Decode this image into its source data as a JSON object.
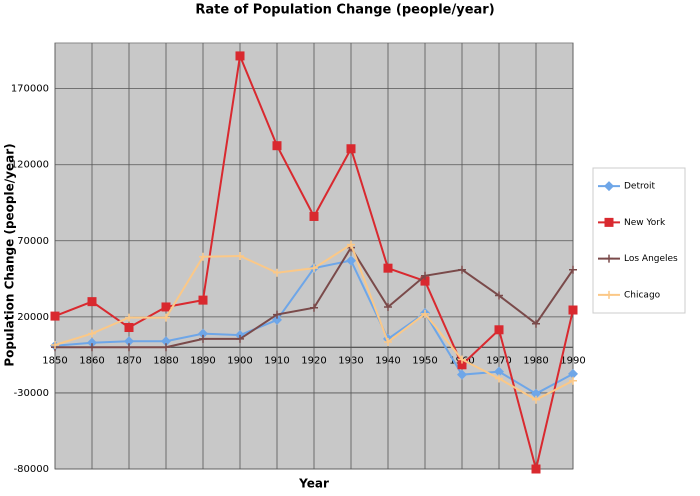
{
  "chart_data": {
    "type": "line",
    "title": "Rate of Population Change (people/year)",
    "x_label": "Year",
    "y_label": "Population Change (people/year)",
    "categories": [
      "1850",
      "1860",
      "1870",
      "1880",
      "1890",
      "1900",
      "1910",
      "1920",
      "1930",
      "1940",
      "1950",
      "1960",
      "1970",
      "1980",
      "1990"
    ],
    "ylim": [
      -80000,
      200000
    ],
    "yticks": [
      -80000,
      -30000,
      20000,
      70000,
      120000,
      170000
    ],
    "grid": true,
    "legend": "right",
    "series": [
      {
        "name": "Detroit",
        "color": "#6ea6e8",
        "marker": "diamond",
        "values": [
          1000,
          3000,
          4000,
          4000,
          9000,
          8000,
          18000,
          52000,
          57000,
          5500,
          22500,
          -18000,
          -16000,
          -30500,
          -17500
        ]
      },
      {
        "name": "New York",
        "color": "#d9292f",
        "marker": "square",
        "values": [
          20500,
          30000,
          13000,
          26500,
          31000,
          191500,
          132500,
          86000,
          130500,
          52000,
          43500,
          -11500,
          11500,
          -80000,
          24500
        ]
      },
      {
        "name": "Los Angeles",
        "color": "#7a4a4a",
        "marker": "plus",
        "values": [
          0,
          0,
          0,
          0,
          5500,
          5500,
          21500,
          26000,
          65500,
          26500,
          47000,
          51000,
          34000,
          15500,
          51000
        ]
      },
      {
        "name": "Chicago",
        "color": "#fbc887",
        "marker": "plus",
        "values": [
          1500,
          9000,
          19500,
          19500,
          59500,
          60000,
          49000,
          52000,
          67500,
          3500,
          22000,
          -8000,
          -20500,
          -34500,
          -22000
        ]
      }
    ]
  }
}
